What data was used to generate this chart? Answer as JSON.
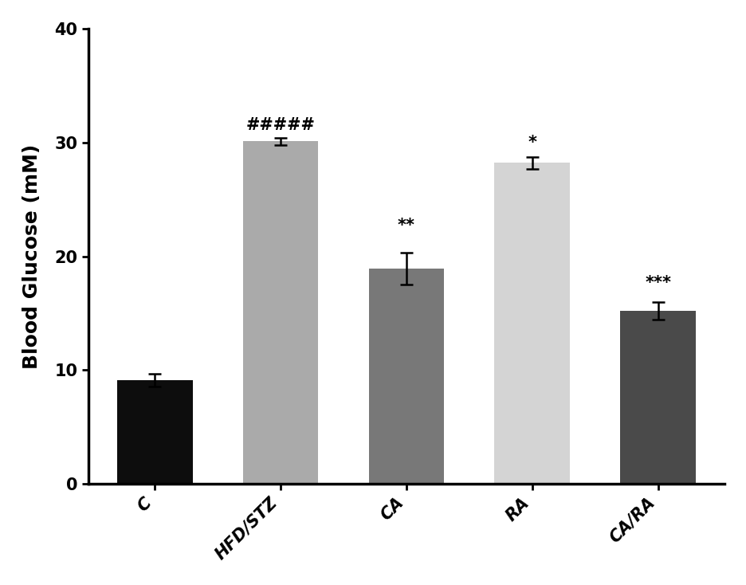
{
  "categories": [
    "C",
    "HFD/STZ",
    "CA",
    "RA",
    "CA/RA"
  ],
  "values": [
    9.1,
    30.1,
    18.9,
    28.2,
    15.2
  ],
  "errors": [
    0.55,
    0.3,
    1.4,
    0.5,
    0.75
  ],
  "bar_colors": [
    "#0d0d0d",
    "#aaaaaa",
    "#787878",
    "#d4d4d4",
    "#4a4a4a"
  ],
  "annotations": [
    "",
    "#####",
    "**",
    "*",
    "***"
  ],
  "annotation_offsets": [
    0,
    0.4,
    1.7,
    0.6,
    1.0
  ],
  "ylabel": "Blood Glucose (mM)",
  "ylim": [
    0,
    40
  ],
  "yticks": [
    0,
    10,
    20,
    30,
    40
  ],
  "bar_width": 0.6,
  "annotation_fontsize": 15,
  "tick_fontsize": 15,
  "label_fontsize": 18,
  "background_color": "#ffffff",
  "edge_color": "none"
}
